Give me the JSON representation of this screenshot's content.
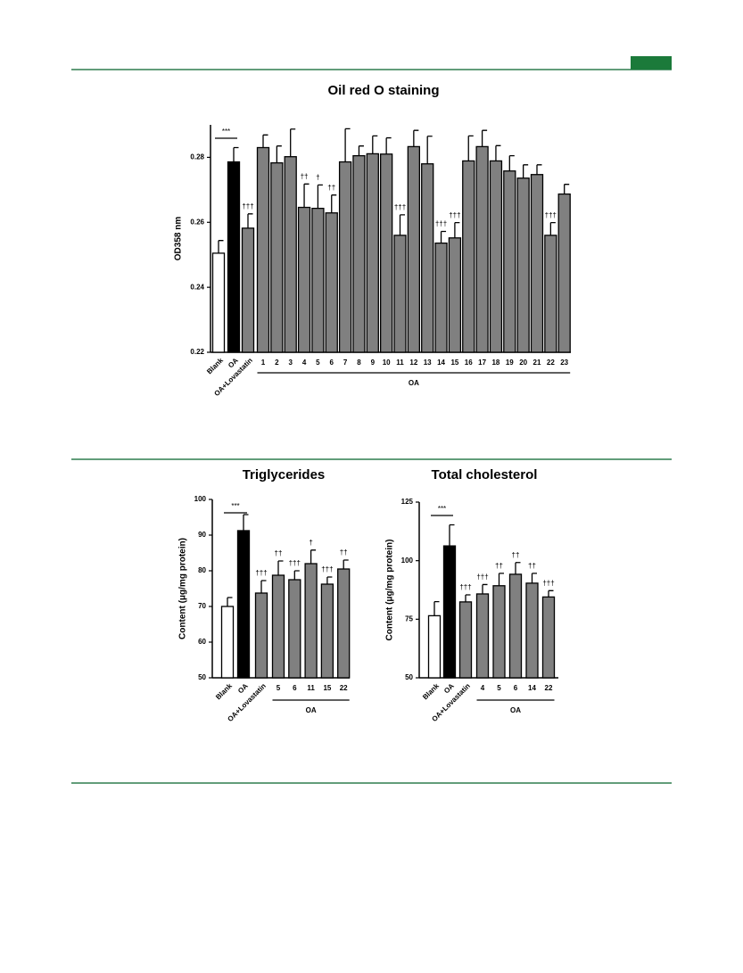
{
  "chart_data": [
    {
      "type": "bar",
      "title": "Oil red O staining",
      "y_label": "OD358 nm",
      "categories": [
        "Blank",
        "OA",
        "OA+Lovastatin",
        "1",
        "2",
        "3",
        "4",
        "5",
        "6",
        "7",
        "8",
        "9",
        "10",
        "11",
        "12",
        "13",
        "14",
        "15",
        "16",
        "17",
        "18",
        "19",
        "20",
        "21",
        "22",
        "23"
      ],
      "values": [
        0.2505,
        0.2786,
        0.2582,
        0.283,
        0.2783,
        0.2802,
        0.2646,
        0.2643,
        0.2629,
        0.2786,
        0.2805,
        0.2811,
        0.281,
        0.256,
        0.2833,
        0.278,
        0.2536,
        0.2552,
        0.2789,
        0.2833,
        0.2789,
        0.2758,
        0.2736,
        0.2747,
        0.256,
        0.2687
      ],
      "errors": [
        0.0039,
        0.0044,
        0.0044,
        0.0039,
        0.0052,
        0.0085,
        0.0072,
        0.0072,
        0.0055,
        0.0102,
        0.003,
        0.0055,
        0.005,
        0.0063,
        0.005,
        0.0085,
        0.0036,
        0.0047,
        0.0077,
        0.005,
        0.0047,
        0.0047,
        0.0041,
        0.003,
        0.0039,
        0.003
      ],
      "annotations": [
        null,
        null,
        "†††",
        null,
        null,
        null,
        "††",
        "†",
        "††",
        null,
        null,
        null,
        null,
        "†††",
        null,
        null,
        "†††",
        "†††",
        null,
        null,
        null,
        null,
        null,
        null,
        "†††",
        null
      ],
      "colors": [
        "#ffffff",
        "#000000",
        "#808080",
        "#808080",
        "#808080",
        "#808080",
        "#808080",
        "#808080",
        "#808080",
        "#808080",
        "#808080",
        "#808080",
        "#808080",
        "#808080",
        "#808080",
        "#808080",
        "#808080",
        "#808080",
        "#808080",
        "#808080",
        "#808080",
        "#808080",
        "#808080",
        "#808080",
        "#808080",
        "#808080"
      ],
      "bracket_label": "***",
      "group_label": "OA",
      "ylim": [
        0.22,
        0.29
      ],
      "yticks": [
        0.22,
        0.24,
        0.26,
        0.28
      ]
    },
    {
      "type": "bar",
      "title": "Triglycerides",
      "y_label": "Content (μg/mg protein)",
      "categories": [
        "Blank",
        "OA",
        "OA+Lovastatin",
        "5",
        "6",
        "11",
        "15",
        "22"
      ],
      "values": [
        70,
        91.25,
        73.75,
        78.75,
        77.5,
        82,
        76.25,
        80.5
      ],
      "errors": [
        2.5,
        4.5,
        3.5,
        4,
        2.5,
        3.8,
        2,
        2.5
      ],
      "annotations": [
        null,
        null,
        "†††",
        "††",
        "†††",
        "†",
        "†††",
        "††"
      ],
      "colors": [
        "#ffffff",
        "#000000",
        "#808080",
        "#808080",
        "#808080",
        "#808080",
        "#808080",
        "#808080"
      ],
      "bracket_label": "***",
      "group_label": "OA",
      "ylim": [
        50,
        100
      ],
      "yticks": [
        50,
        60,
        70,
        80,
        90,
        100
      ]
    },
    {
      "type": "bar",
      "title": "Total cholesterol",
      "y_label": "Content (μg/mg protein)",
      "categories": [
        "Blank",
        "OA",
        "OA+Lovastatin",
        "4",
        "5",
        "6",
        "14",
        "22"
      ],
      "values": [
        76.5,
        106.3,
        82.4,
        85.8,
        89.3,
        94.2,
        90.4,
        84.5
      ],
      "errors": [
        6,
        9,
        3,
        4,
        5.3,
        5,
        4.2,
        2.7
      ],
      "annotations": [
        null,
        null,
        "†††",
        "†††",
        "††",
        "††",
        "††",
        "†††"
      ],
      "colors": [
        "#ffffff",
        "#000000",
        "#808080",
        "#808080",
        "#808080",
        "#808080",
        "#808080",
        "#808080"
      ],
      "bracket_label": "***",
      "group_label": "OA",
      "ylim": [
        50,
        125
      ],
      "yticks": [
        50,
        75,
        100,
        125
      ]
    }
  ]
}
